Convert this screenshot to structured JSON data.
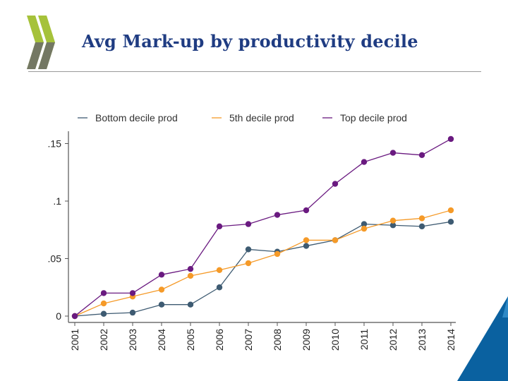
{
  "page": {
    "title": "Avg Mark-up by productivity decile"
  },
  "colors": {
    "title": "#1f3c82",
    "logo_green": "#a6c23a",
    "logo_grey": "#6b6b6b",
    "corner_blue": "#0a61a0",
    "corner_light": "#3d9ad6",
    "axis": "#555555"
  },
  "icons": {
    "logo": "oecd-logo-icon",
    "corner": "corner-triangle-icon"
  },
  "chart_data": {
    "type": "line",
    "title": "",
    "xlabel": "",
    "ylabel": "",
    "x": [
      "2001",
      "2002",
      "2003",
      "2004",
      "2005",
      "2006",
      "2007",
      "2008",
      "2009",
      "2010",
      "2011",
      "2012",
      "2013",
      "2014"
    ],
    "ylim": [
      0,
      0.16
    ],
    "yticks": [
      0,
      0.05,
      0.1,
      0.15
    ],
    "ytick_labels": [
      "0",
      ".05",
      ".1",
      ".15"
    ],
    "legend_position": "top",
    "series": [
      {
        "name": "Bottom decile prod",
        "color": "#3e5b72",
        "values": [
          0,
          0.002,
          0.003,
          0.01,
          0.01,
          0.025,
          0.058,
          0.056,
          0.061,
          0.066,
          0.08,
          0.079,
          0.078,
          0.082
        ]
      },
      {
        "name": "5th decile prod",
        "color": "#f59a28",
        "values": [
          0,
          0.011,
          0.017,
          0.023,
          0.035,
          0.04,
          0.046,
          0.054,
          0.066,
          0.066,
          0.076,
          0.083,
          0.085,
          0.092
        ]
      },
      {
        "name": "Top decile prod",
        "color": "#6a1a80",
        "values": [
          0,
          0.02,
          0.02,
          0.036,
          0.041,
          0.078,
          0.08,
          0.088,
          0.092,
          0.115,
          0.134,
          0.142,
          0.14,
          0.154
        ]
      }
    ]
  }
}
